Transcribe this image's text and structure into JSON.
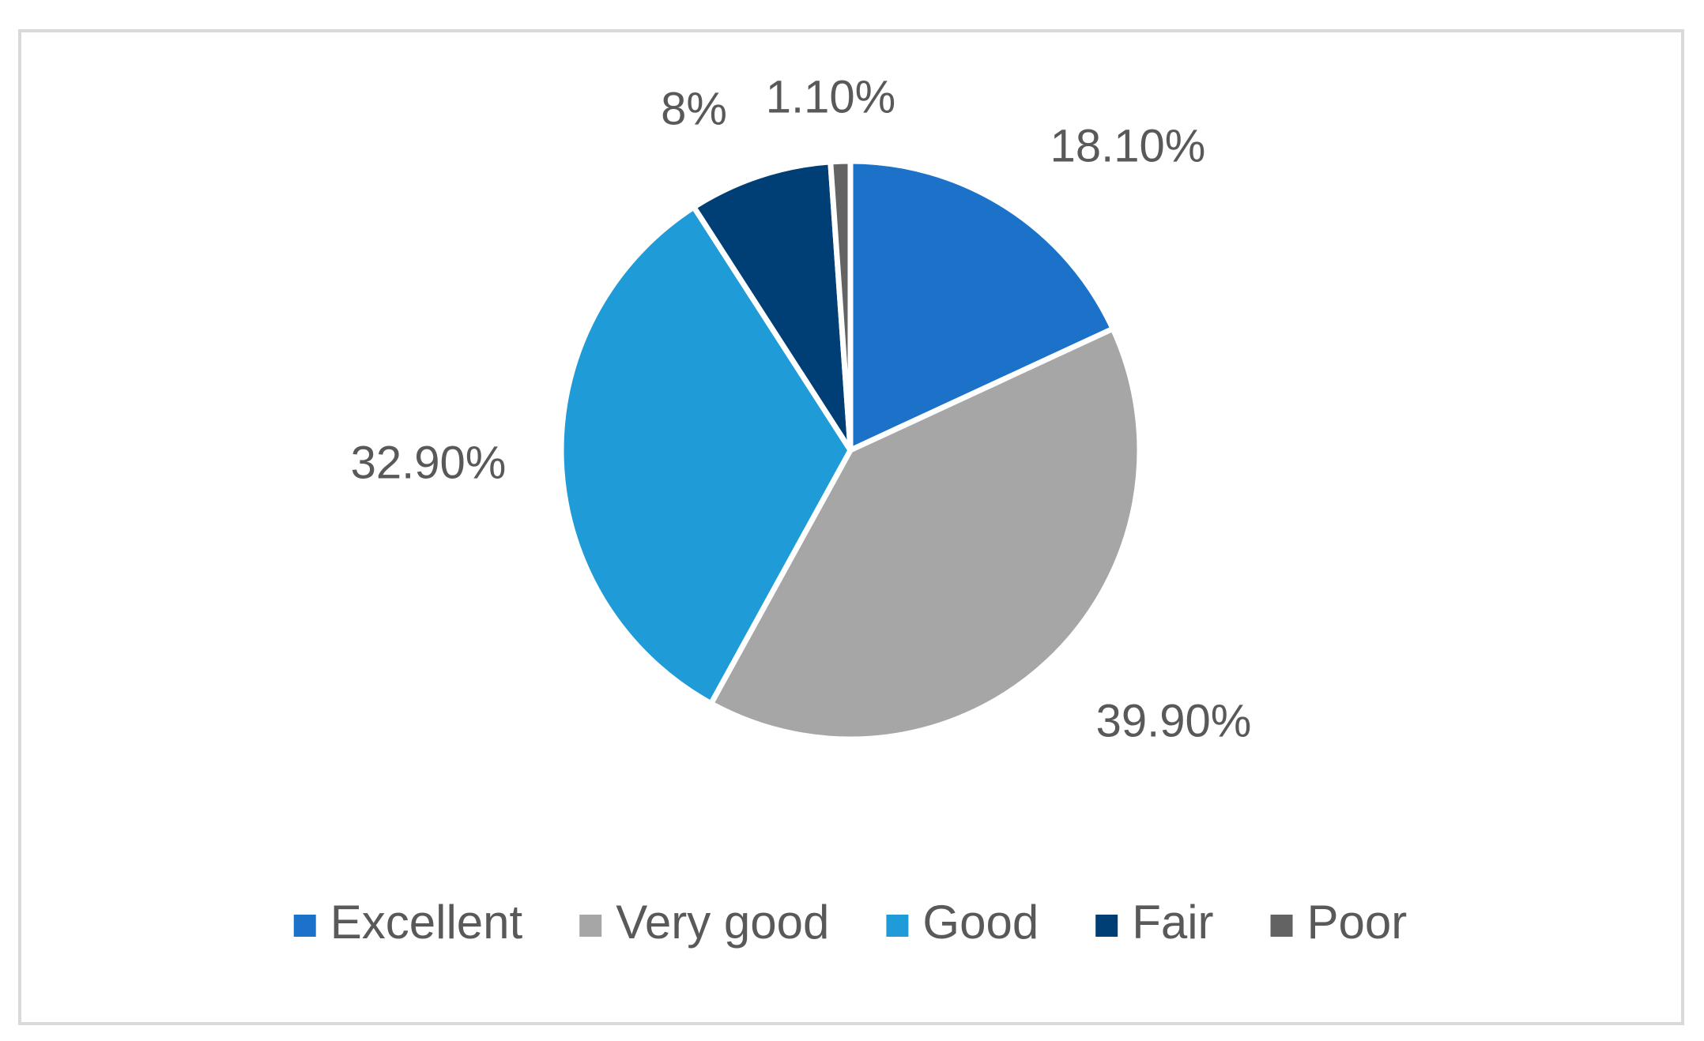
{
  "chart_data": {
    "type": "pie",
    "categories": [
      "Excellent",
      "Very good",
      "Good",
      "Fair",
      "Poor"
    ],
    "values": [
      18.1,
      39.9,
      32.9,
      8,
      1.1
    ],
    "value_labels": [
      "18.10%",
      "39.90%",
      "32.90%",
      "8%",
      "1.10%"
    ],
    "colors": [
      "#1b72c8",
      "#a6a6a6",
      "#1f9bd7",
      "#003f75",
      "#636363"
    ],
    "legend": "bottom"
  }
}
